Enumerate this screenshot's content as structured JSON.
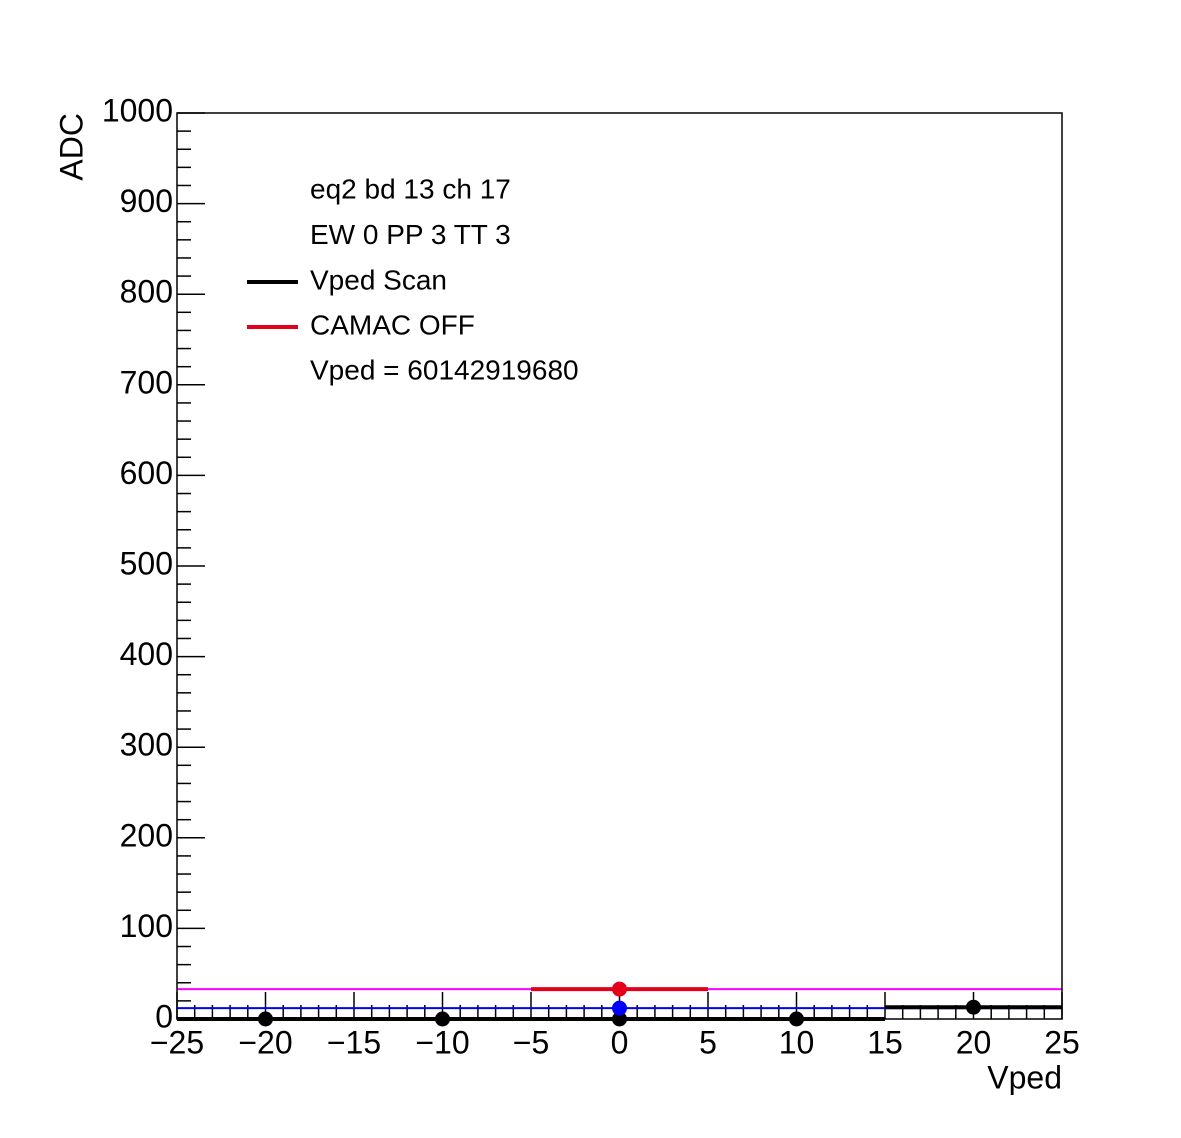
{
  "chart_data": {
    "type": "scatter",
    "xlabel": "Vped",
    "ylabel": "ADC",
    "xlim": [
      -25,
      25
    ],
    "ylim": [
      0,
      1000
    ],
    "xticks": [
      {
        "value": -25,
        "label": "−25"
      },
      {
        "value": -20,
        "label": "−20"
      },
      {
        "value": -15,
        "label": "−15"
      },
      {
        "value": -10,
        "label": "−10"
      },
      {
        "value": -5,
        "label": "−5"
      },
      0,
      5,
      10,
      15,
      20,
      25
    ],
    "yticks": [
      0,
      100,
      200,
      300,
      400,
      500,
      600,
      700,
      800,
      900,
      1000
    ],
    "series": [
      {
        "name": "Vped Scan",
        "color": "#000000",
        "x": [
          -20,
          -10,
          0,
          10,
          20
        ],
        "xerr": [
          5,
          5,
          5,
          5,
          5
        ],
        "values": [
          0,
          0,
          0,
          0,
          13
        ]
      },
      {
        "name": "CAMAC OFF",
        "color": "#e3001b",
        "x": [
          0
        ],
        "xerr": [
          5
        ],
        "values": [
          33
        ]
      },
      {
        "color": "#0000ff",
        "x": [
          0
        ],
        "values": [
          12
        ]
      }
    ],
    "hlines": [
      {
        "value": 12,
        "color": "#0000ff"
      },
      {
        "value": 33,
        "color": "#ff00ff"
      }
    ],
    "legend_header": [
      "eq2 bd 13 ch 17",
      "EW 0 PP 3 TT 3"
    ],
    "legend_footer": "Vped = 60142919680"
  }
}
